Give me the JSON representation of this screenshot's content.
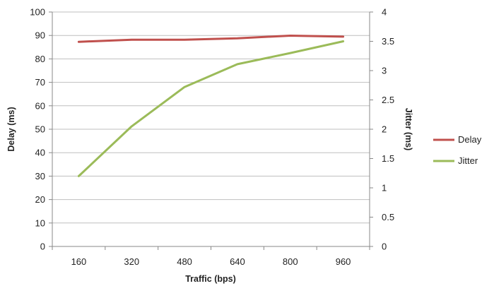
{
  "chart_data": {
    "type": "line",
    "categories": [
      "160",
      "320",
      "480",
      "640",
      "800",
      "960"
    ],
    "xlabel": "Traffic (bps)",
    "ylabel": "Delay (ms)",
    "y2label": "Jitter (ms)",
    "ylim": [
      0,
      100
    ],
    "y2lim": [
      0,
      4
    ],
    "yticks": [
      "0",
      "10",
      "20",
      "30",
      "40",
      "50",
      "60",
      "70",
      "80",
      "90",
      "100"
    ],
    "y2ticks": [
      "0",
      "0.5",
      "1",
      "1.5",
      "2",
      "2.5",
      "3",
      "3.5",
      "4"
    ],
    "grid": "horizontal major",
    "legend": "right",
    "series": [
      {
        "name": "Delay",
        "axis": "left",
        "color": "#c0504d",
        "values": [
          87.3,
          88.2,
          88.2,
          88.8,
          89.9,
          89.5
        ]
      },
      {
        "name": "Jitter",
        "axis": "right",
        "color": "#9bbb59",
        "values": [
          1.2,
          2.05,
          2.72,
          3.11,
          3.3,
          3.5
        ]
      }
    ]
  }
}
